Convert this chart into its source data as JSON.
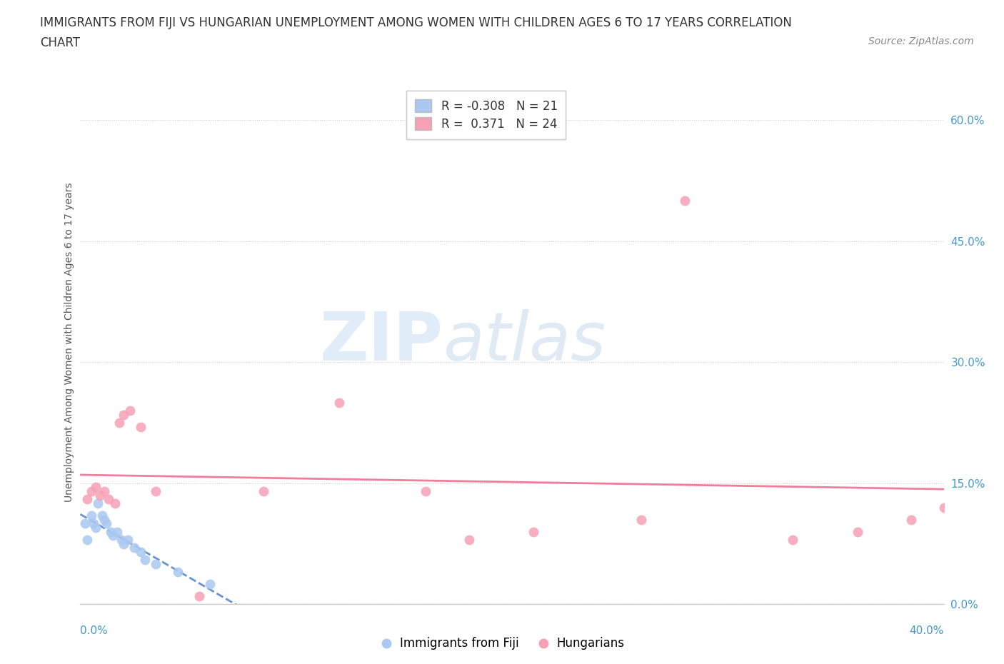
{
  "title_line1": "IMMIGRANTS FROM FIJI VS HUNGARIAN UNEMPLOYMENT AMONG WOMEN WITH CHILDREN AGES 6 TO 17 YEARS CORRELATION",
  "title_line2": "CHART",
  "source": "Source: ZipAtlas.com",
  "ylabel": "Unemployment Among Women with Children Ages 6 to 17 years",
  "yticks_values": [
    0.0,
    15.0,
    30.0,
    45.0,
    60.0
  ],
  "xlim": [
    0.0,
    40.0
  ],
  "ylim": [
    0.0,
    65.0
  ],
  "watermark_top": "ZIP",
  "watermark_bot": "atlas",
  "legend_fiji_label": "Immigrants from Fiji",
  "legend_hun_label": "Hungarians",
  "fiji_R": -0.308,
  "fiji_N": 21,
  "hun_R": 0.371,
  "hun_N": 24,
  "fiji_color": "#aac8f0",
  "hun_color": "#f5a0b5",
  "fiji_line_color": "#5588cc",
  "hun_line_color": "#ee7090",
  "background_color": "#ffffff",
  "grid_color": "#cccccc",
  "fiji_scatter_x": [
    0.2,
    0.3,
    0.5,
    0.6,
    0.7,
    0.8,
    1.0,
    1.1,
    1.2,
    1.4,
    1.5,
    1.7,
    1.9,
    2.0,
    2.2,
    2.5,
    2.8,
    3.0,
    3.5,
    4.5,
    6.0
  ],
  "fiji_scatter_y": [
    10.0,
    8.0,
    11.0,
    10.0,
    9.5,
    12.5,
    11.0,
    10.5,
    10.0,
    9.0,
    8.5,
    9.0,
    8.0,
    7.5,
    8.0,
    7.0,
    6.5,
    5.5,
    5.0,
    4.0,
    2.5
  ],
  "hun_scatter_x": [
    0.3,
    0.5,
    0.7,
    0.9,
    1.1,
    1.3,
    1.6,
    1.8,
    2.0,
    2.3,
    2.8,
    3.5,
    5.5,
    8.5,
    12.0,
    16.0,
    18.0,
    21.0,
    26.0,
    28.0,
    33.0,
    36.0,
    38.5,
    40.0
  ],
  "hun_scatter_y": [
    13.0,
    14.0,
    14.5,
    13.5,
    14.0,
    13.0,
    12.5,
    22.5,
    23.5,
    24.0,
    22.0,
    14.0,
    1.0,
    14.0,
    25.0,
    14.0,
    8.0,
    9.0,
    10.5,
    50.0,
    8.0,
    9.0,
    10.5,
    12.0
  ],
  "title_fontsize": 12,
  "axis_label_fontsize": 10,
  "tick_fontsize": 11,
  "legend_fontsize": 12,
  "source_fontsize": 10
}
